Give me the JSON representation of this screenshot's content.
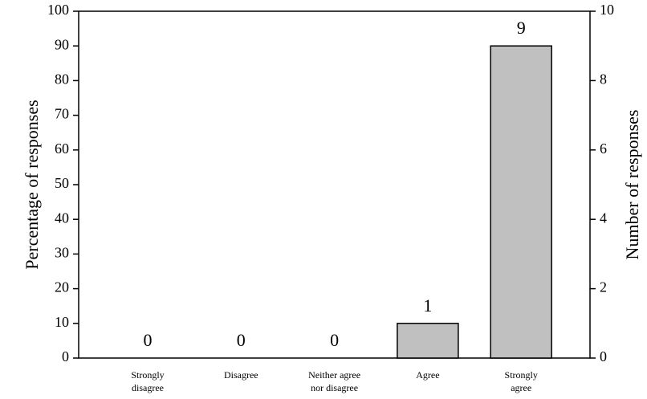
{
  "chart_data": {
    "type": "bar",
    "categories": [
      "Strongly\ndisagree",
      "Disagree",
      "Neither agree\nnor disagree",
      "Agree",
      "Strongly\nagree"
    ],
    "series": [
      {
        "name": "Number of responses",
        "color": "#c0c0c0",
        "axis": "y2",
        "values": [
          0,
          0,
          0,
          1,
          9
        ]
      }
    ],
    "ylabel": "Percentage of responses",
    "y2label": "Number of responses",
    "ylim": [
      0,
      100
    ],
    "yticks": [
      0,
      10,
      20,
      30,
      40,
      50,
      60,
      70,
      80,
      90,
      100
    ],
    "y2lim": [
      0,
      10
    ],
    "y2ticks": [
      0,
      2,
      4,
      6,
      8,
      10
    ]
  }
}
